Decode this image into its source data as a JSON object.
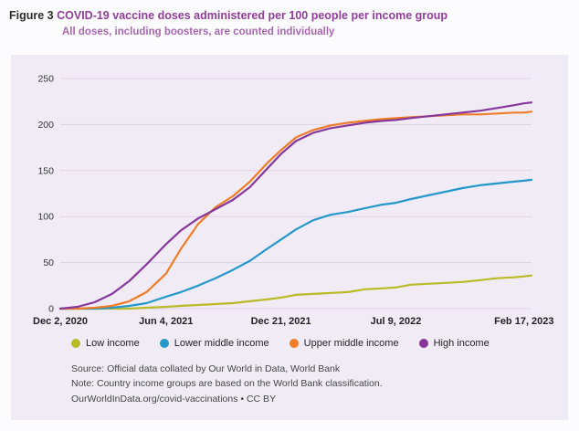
{
  "figure": {
    "label": "Figure 3",
    "title": "COVID-19 vaccine doses administered per 100 people per income group",
    "subtitle": "All doses, including boosters, are counted individually"
  },
  "footer": {
    "source": "Source: Official data collated by Our World in Data, World Bank",
    "note": "Note: Country income groups are based on the World Bank classification.",
    "credit": "OurWorldInData.org/covid-vaccinations • CC BY"
  },
  "chart_data": {
    "type": "line",
    "title": "COVID-19 vaccine doses administered per 100 people per income group",
    "xlabel": "",
    "ylabel": "",
    "grid": "horizontal",
    "legend_position": "bottom",
    "xlim": [
      0,
      820
    ],
    "ylim": [
      0,
      250
    ],
    "yticks": [
      0,
      50,
      100,
      150,
      200,
      250
    ],
    "xticks": [
      {
        "t": 0,
        "label": "Dec 2, 2020"
      },
      {
        "t": 184,
        "label": "Jun 4, 2021"
      },
      {
        "t": 384,
        "label": "Dec 21, 2021"
      },
      {
        "t": 584,
        "label": "Jul 9, 2022"
      },
      {
        "t": 807,
        "label": "Feb 17, 2023"
      }
    ],
    "x_days_since_start": [
      0,
      30,
      60,
      90,
      120,
      150,
      184,
      210,
      240,
      270,
      300,
      330,
      360,
      384,
      410,
      440,
      470,
      500,
      530,
      560,
      584,
      610,
      640,
      670,
      700,
      730,
      760,
      790,
      807,
      820
    ],
    "series": [
      {
        "name": "Low income",
        "color": "#b9ba26",
        "values": [
          0,
          0,
          0,
          0,
          0,
          1,
          2,
          3,
          4,
          5,
          6,
          8,
          10,
          12,
          15,
          16,
          17,
          18,
          21,
          22,
          23,
          26,
          27,
          28,
          29,
          31,
          33,
          34,
          35,
          36
        ]
      },
      {
        "name": "Lower middle income",
        "color": "#2398c9",
        "values": [
          0,
          0,
          0,
          1,
          3,
          6,
          13,
          18,
          25,
          33,
          42,
          52,
          65,
          75,
          86,
          96,
          102,
          105,
          109,
          113,
          115,
          119,
          123,
          127,
          131,
          134,
          136,
          138,
          139,
          140
        ]
      },
      {
        "name": "Upper middle income",
        "color": "#ef7d28",
        "values": [
          0,
          0,
          1,
          3,
          8,
          18,
          38,
          65,
          92,
          110,
          122,
          138,
          158,
          172,
          186,
          194,
          199,
          202,
          204,
          206,
          207,
          208,
          209,
          210,
          211,
          211,
          212,
          213,
          213,
          214
        ]
      },
      {
        "name": "High income",
        "color": "#86389c",
        "values": [
          0,
          2,
          7,
          16,
          30,
          48,
          70,
          85,
          98,
          108,
          118,
          132,
          152,
          168,
          182,
          191,
          196,
          199,
          202,
          204,
          205,
          207,
          209,
          211,
          213,
          215,
          218,
          221,
          223,
          224
        ]
      }
    ]
  }
}
